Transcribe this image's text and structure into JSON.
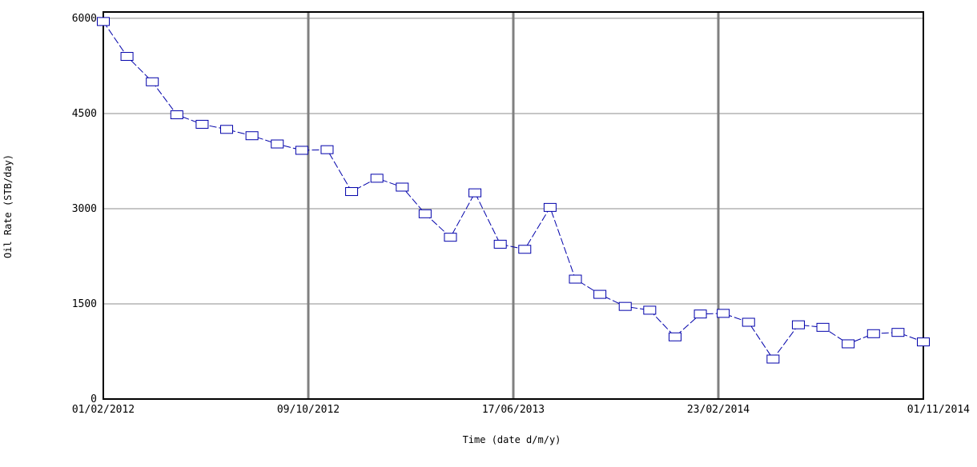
{
  "chart_data": {
    "type": "line",
    "xlabel": "Time (date d/m/y)",
    "ylabel": "Oil Rate (STB/day)",
    "ylim": [
      0,
      6000
    ],
    "yticks": [
      0,
      1500,
      3000,
      4500,
      6000
    ],
    "xlim": [
      "2012-02-01",
      "2014-11-01"
    ],
    "xticks": [
      "01/02/2012",
      "09/10/2012",
      "17/06/2013",
      "23/02/2014",
      "01/11/2014"
    ],
    "grid": true,
    "line_color": "#0000aa",
    "series": [
      {
        "marker": "square",
        "points": [
          {
            "x": "2012-02-01",
            "y": 5950
          },
          {
            "x": "2012-03-01",
            "y": 5400
          },
          {
            "x": "2012-04-01",
            "y": 5000
          },
          {
            "x": "2012-05-01",
            "y": 4480
          },
          {
            "x": "2012-06-01",
            "y": 4330
          },
          {
            "x": "2012-07-01",
            "y": 4250
          },
          {
            "x": "2012-08-01",
            "y": 4150
          },
          {
            "x": "2012-09-01",
            "y": 4020
          },
          {
            "x": "2012-10-01",
            "y": 3920
          },
          {
            "x": "2012-11-01",
            "y": 3930
          },
          {
            "x": "2012-12-01",
            "y": 3270
          },
          {
            "x": "2013-01-01",
            "y": 3480
          },
          {
            "x": "2013-02-01",
            "y": 3340
          },
          {
            "x": "2013-03-01",
            "y": 2920
          },
          {
            "x": "2013-04-01",
            "y": 2550
          },
          {
            "x": "2013-05-01",
            "y": 3250
          },
          {
            "x": "2013-06-01",
            "y": 2440
          },
          {
            "x": "2013-07-01",
            "y": 2360
          },
          {
            "x": "2013-08-01",
            "y": 3020
          },
          {
            "x": "2013-09-01",
            "y": 1890
          },
          {
            "x": "2013-10-01",
            "y": 1650
          },
          {
            "x": "2013-11-01",
            "y": 1460
          },
          {
            "x": "2013-12-01",
            "y": 1400
          },
          {
            "x": "2014-01-01",
            "y": 980
          },
          {
            "x": "2014-02-01",
            "y": 1340
          },
          {
            "x": "2014-03-01",
            "y": 1350
          },
          {
            "x": "2014-04-01",
            "y": 1210
          },
          {
            "x": "2014-05-01",
            "y": 630
          },
          {
            "x": "2014-06-01",
            "y": 1170
          },
          {
            "x": "2014-07-01",
            "y": 1130
          },
          {
            "x": "2014-08-01",
            "y": 870
          },
          {
            "x": "2014-09-01",
            "y": 1030
          },
          {
            "x": "2014-10-01",
            "y": 1050
          },
          {
            "x": "2014-11-01",
            "y": 900
          }
        ]
      }
    ]
  }
}
